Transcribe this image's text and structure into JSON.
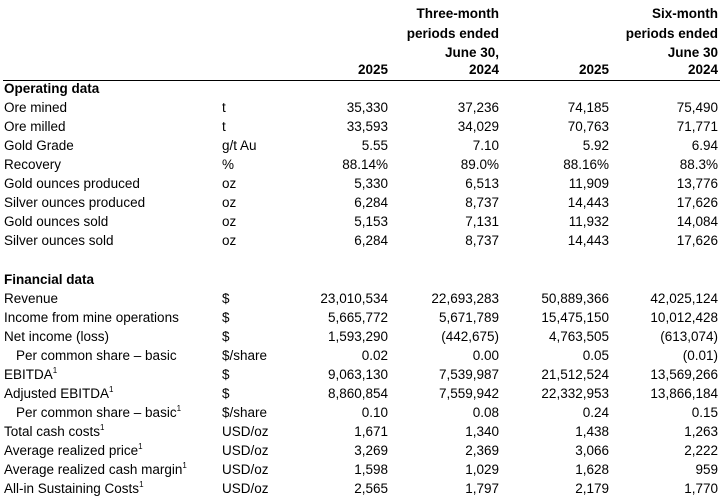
{
  "header": {
    "three_month_l1": "Three-month",
    "three_month_l2": "periods ended",
    "three_month_l3": "June 30,",
    "six_month_l1": "Six-month",
    "six_month_l2": "periods ended",
    "six_month_l3": "June 30",
    "years": [
      "2025",
      "2024",
      "2025",
      "2024"
    ]
  },
  "operating": {
    "title": "Operating data",
    "rows": [
      {
        "label": "Ore mined",
        "unit": "t",
        "values": [
          "35,330",
          "37,236",
          "74,185",
          "75,490"
        ]
      },
      {
        "label": "Ore milled",
        "unit": "t",
        "values": [
          "33,593",
          "34,029",
          "70,763",
          "71,771"
        ]
      },
      {
        "label": "Gold Grade",
        "unit": "g/t Au",
        "values": [
          "5.55",
          "7.10",
          "5.92",
          "6.94"
        ]
      },
      {
        "label": "Recovery",
        "unit": "%",
        "values": [
          "88.14%",
          "89.0%",
          "88.16%",
          "88.3%"
        ]
      },
      {
        "label": "Gold ounces produced",
        "unit": "oz",
        "values": [
          "5,330",
          "6,513",
          "11,909",
          "13,776"
        ]
      },
      {
        "label": "Silver ounces produced",
        "unit": "oz",
        "values": [
          "6,284",
          "8,737",
          "14,443",
          "17,626"
        ]
      },
      {
        "label": "Gold ounces sold",
        "unit": "oz",
        "values": [
          "5,153",
          "7,131",
          "11,932",
          "14,084"
        ]
      },
      {
        "label": "Silver ounces sold",
        "unit": "oz",
        "values": [
          "6,284",
          "8,737",
          "14,443",
          "17,626"
        ]
      }
    ]
  },
  "financial": {
    "title": "Financial data",
    "footnote_marker": "1",
    "rows": [
      {
        "label": "Revenue",
        "unit": "$",
        "values": [
          "23,010,534",
          "22,693,283",
          "50,889,366",
          "42,025,124"
        ]
      },
      {
        "label": "Income from mine operations",
        "unit": "$",
        "values": [
          "5,665,772",
          "5,671,789",
          "15,475,150",
          "10,012,428"
        ]
      },
      {
        "label": "Net income (loss)",
        "unit": "$",
        "values": [
          "1,593,290",
          "(442,675)",
          "4,763,505",
          "(613,074)"
        ]
      },
      {
        "label": "Per common share – basic",
        "unit": "$/share",
        "values": [
          "0.02",
          "0.00",
          "0.05",
          "(0.01)"
        ]
      },
      {
        "label": "EBITDA",
        "unit": "$",
        "values": [
          "9,063,130",
          "7,539,987",
          "21,512,524",
          "13,569,266"
        ]
      },
      {
        "label": "Adjusted EBITDA",
        "unit": "$",
        "values": [
          "8,860,854",
          "7,559,942",
          "22,332,953",
          "13,866,184"
        ]
      },
      {
        "label": "Per common share – basic",
        "unit": "$/share",
        "values": [
          "0.10",
          "0.08",
          "0.24",
          "0.15"
        ]
      },
      {
        "label": "Total cash costs",
        "unit": "USD/oz",
        "values": [
          "1,671",
          "1,340",
          "1,438",
          "1,263"
        ]
      },
      {
        "label": "Average realized price",
        "unit": "USD/oz",
        "values": [
          "3,269",
          "2,369",
          "3,066",
          "2,222"
        ]
      },
      {
        "label": "Average realized cash margin",
        "unit": "USD/oz",
        "values": [
          "1,598",
          "1,029",
          "1,628",
          "959"
        ]
      },
      {
        "label": "All-in Sustaining Costs",
        "unit": "USD/oz",
        "values": [
          "2,565",
          "1,797",
          "2,179",
          "1,770"
        ]
      }
    ]
  }
}
